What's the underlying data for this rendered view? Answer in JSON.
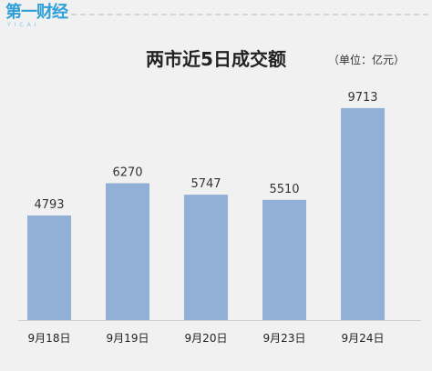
{
  "logo": {
    "main_text": "第一财经",
    "sub_text": "YICAI"
  },
  "chart_data": {
    "type": "bar",
    "title": "两市近5日成交额",
    "unit_note": "（单位：亿元）",
    "categories": [
      "9月18日",
      "9月19日",
      "9月20日",
      "9月23日",
      "9月24日"
    ],
    "values": [
      4793,
      6270,
      5747,
      5510,
      9713
    ],
    "data_labels": [
      "4793",
      "6270",
      "5747",
      "5510",
      "9713"
    ],
    "xlabel": "",
    "ylabel": "",
    "ylim": [
      0,
      10500
    ],
    "grid": false,
    "legend": "none",
    "bar_color": "#92afd5",
    "axis_color": "#cfcfcf"
  }
}
